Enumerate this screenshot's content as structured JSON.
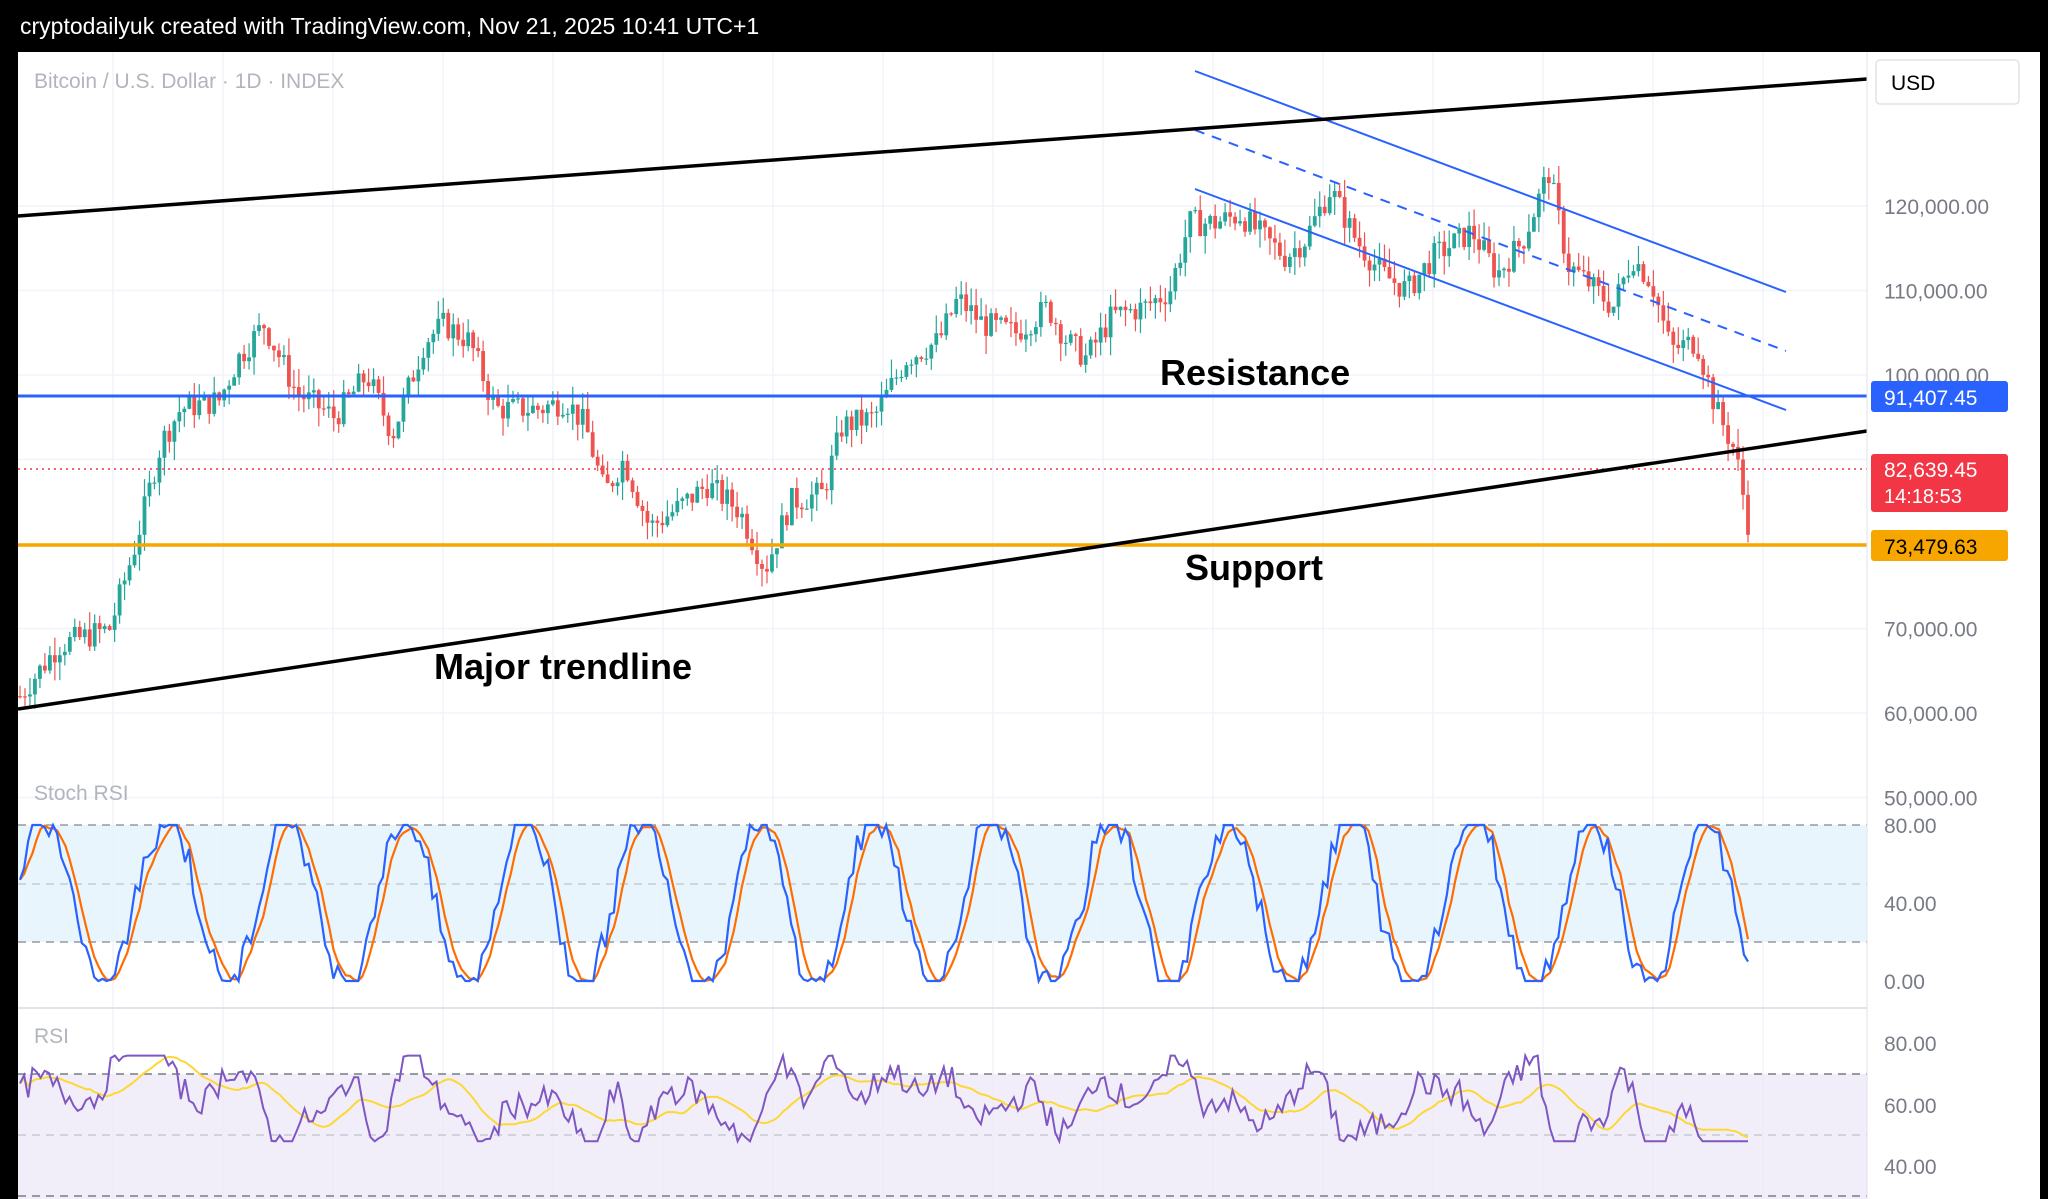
{
  "header": {
    "caption": "cryptodailyuk created with TradingView.com, Nov 21, 2025 10:41 UTC+1"
  },
  "symbol": {
    "title": "Bitcoin / U.S. Dollar · 1D · INDEX",
    "currency": "USD"
  },
  "colors": {
    "up": "#26a69a",
    "down": "#ef5350",
    "resistance": "#2962ff",
    "support": "#f7a600",
    "channel": "#2962ff",
    "trendline": "#000000",
    "price_label": "#f23645",
    "stoch_k": "#2962ff",
    "stoch_d": "#ff6d00",
    "rsi": "#7e57c2",
    "rsi_ma": "#fdd835"
  },
  "annotations": {
    "resistance": "Resistance",
    "support": "Support",
    "major_trendline": "Major trendline"
  },
  "price_labels": {
    "resistance": "91,407.45",
    "last": "82,639.45",
    "countdown": "14:18:53",
    "support": "73,479.63"
  },
  "chart_data": {
    "type": "candlestick",
    "y_ticks": [
      "120,000.00",
      "110,000.00",
      "100,000.00",
      "70,000.00",
      "60,000.00",
      "50,000.00"
    ],
    "y_range": [
      48000,
      128000
    ],
    "x_range": [
      "2024-11-01",
      "2025-11-21"
    ],
    "levels": {
      "resistance": 91407.45,
      "support": 73479.63,
      "last": 82639.45
    },
    "close_path": [
      {
        "x": 0,
        "y": 62000
      },
      {
        "x": 0.03,
        "y": 68000
      },
      {
        "x": 0.07,
        "y": 70000
      },
      {
        "x": 0.09,
        "y": 80000
      },
      {
        "x": 0.11,
        "y": 92000
      },
      {
        "x": 0.125,
        "y": 96000
      },
      {
        "x": 0.155,
        "y": 97000
      },
      {
        "x": 0.17,
        "y": 102000
      },
      {
        "x": 0.19,
        "y": 106000
      },
      {
        "x": 0.215,
        "y": 98000
      },
      {
        "x": 0.245,
        "y": 95000
      },
      {
        "x": 0.27,
        "y": 100000
      },
      {
        "x": 0.29,
        "y": 93000
      },
      {
        "x": 0.315,
        "y": 104000
      },
      {
        "x": 0.33,
        "y": 106000
      },
      {
        "x": 0.35,
        "y": 104000
      },
      {
        "x": 0.37,
        "y": 96000
      },
      {
        "x": 0.405,
        "y": 96000
      },
      {
        "x": 0.425,
        "y": 97000
      },
      {
        "x": 0.44,
        "y": 94000
      },
      {
        "x": 0.455,
        "y": 86000
      },
      {
        "x": 0.47,
        "y": 90000
      },
      {
        "x": 0.49,
        "y": 82000
      },
      {
        "x": 0.51,
        "y": 84000
      },
      {
        "x": 0.535,
        "y": 87000
      },
      {
        "x": 0.56,
        "y": 84000
      },
      {
        "x": 0.58,
        "y": 77000
      },
      {
        "x": 0.6,
        "y": 85000
      },
      {
        "x": 0.625,
        "y": 86000
      },
      {
        "x": 0.64,
        "y": 94000
      },
      {
        "x": 0.665,
        "y": 95000
      },
      {
        "x": 0.69,
        "y": 102000
      },
      {
        "x": 0.715,
        "y": 104000
      },
      {
        "x": 0.73,
        "y": 109000
      },
      {
        "x": 0.75,
        "y": 106000
      },
      {
        "x": 0.775,
        "y": 105000
      },
      {
        "x": 0.8,
        "y": 108000
      },
      {
        "x": 0.815,
        "y": 104000
      },
      {
        "x": 0.83,
        "y": 102000
      },
      {
        "x": 0.85,
        "y": 107000
      },
      {
        "x": 0.875,
        "y": 108000
      },
      {
        "x": 0.895,
        "y": 110000
      },
      {
        "x": 0.91,
        "y": 118000
      },
      {
        "x": 0.93,
        "y": 118000
      },
      {
        "x": 0.95,
        "y": 119000
      },
      {
        "x": 0.97,
        "y": 116000
      },
      {
        "x": 0.985,
        "y": 114000
      },
      {
        "x": 1.0,
        "y": 116000
      },
      {
        "x": 1.02,
        "y": 122000
      },
      {
        "x": 1.04,
        "y": 116000
      },
      {
        "x": 1.06,
        "y": 112000
      },
      {
        "x": 1.08,
        "y": 110000
      },
      {
        "x": 1.1,
        "y": 114000
      },
      {
        "x": 1.13,
        "y": 117000
      },
      {
        "x": 1.15,
        "y": 112000
      },
      {
        "x": 1.17,
        "y": 116000
      },
      {
        "x": 1.19,
        "y": 124000
      },
      {
        "x": 1.205,
        "y": 113000
      },
      {
        "x": 1.22,
        "y": 111000
      },
      {
        "x": 1.24,
        "y": 108000
      },
      {
        "x": 1.255,
        "y": 114000
      },
      {
        "x": 1.27,
        "y": 111000
      },
      {
        "x": 1.285,
        "y": 103000
      },
      {
        "x": 1.305,
        "y": 104000
      },
      {
        "x": 1.32,
        "y": 96000
      },
      {
        "x": 1.335,
        "y": 91000
      },
      {
        "x": 1.345,
        "y": 82639
      }
    ],
    "stoch_rsi": {
      "levels": [
        80,
        20
      ],
      "ticks": [
        "80.00",
        "40.00",
        "0.00"
      ],
      "label": "Stoch RSI"
    },
    "rsi": {
      "levels": [
        70,
        30
      ],
      "ticks": [
        "80.00",
        "60.00",
        "40.00"
      ],
      "label": "RSI"
    }
  }
}
